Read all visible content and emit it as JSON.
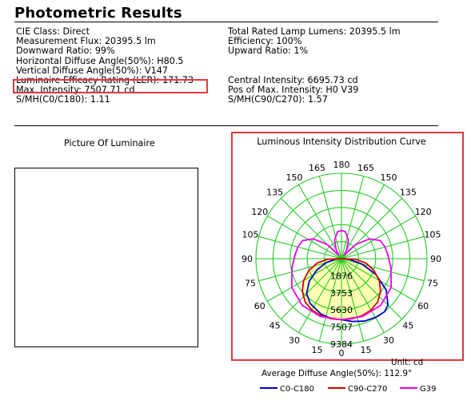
{
  "header": {
    "title": "Photometric Results"
  },
  "left_info": [
    "CIE Class: Direct",
    "Measurement Flux: 20395.5 lm",
    "Downward Ratio: 99%",
    "Horizontal Diffuse Angle(50%): H80.5",
    "Vertical Diffuse Angle(50%): V147",
    "Luminaire Efficacy Rating (LER): 171.73",
    "Max. Intensity: 7507.71 cd",
    "S/MH(C0/C180): 1.11"
  ],
  "right_info": [
    "Total Rated Lamp Lumens: 20395.5 lm",
    "Efficiency: 100%",
    "Upward Ratio: 1%",
    "",
    "",
    "Central Intensity: 6695.73 cd",
    "Pos of Max. Intensity: H0 V39",
    "S/MH(C90/C270): 1.57"
  ],
  "picture": {
    "label": "Picture Of Luminaire"
  },
  "chart_data": {
    "type": "polar",
    "title": "Luminous Intensity Distribution Curve",
    "angle_labels": [
      {
        "deg": 180,
        "text": "180"
      },
      {
        "deg": 165,
        "text": "165"
      },
      {
        "deg": -165,
        "text": "165"
      },
      {
        "deg": 150,
        "text": "150"
      },
      {
        "deg": -150,
        "text": "150"
      },
      {
        "deg": 135,
        "text": "135"
      },
      {
        "deg": -135,
        "text": "135"
      },
      {
        "deg": 120,
        "text": "120"
      },
      {
        "deg": -120,
        "text": "120"
      },
      {
        "deg": 105,
        "text": "105"
      },
      {
        "deg": -105,
        "text": "105"
      },
      {
        "deg": 90,
        "text": "90"
      },
      {
        "deg": -90,
        "text": "90"
      },
      {
        "deg": 75,
        "text": "75"
      },
      {
        "deg": -75,
        "text": "75"
      },
      {
        "deg": 60,
        "text": "60"
      },
      {
        "deg": -60,
        "text": "60"
      },
      {
        "deg": 45,
        "text": "45"
      },
      {
        "deg": -45,
        "text": "45"
      },
      {
        "deg": 30,
        "text": "30"
      },
      {
        "deg": -30,
        "text": "30"
      },
      {
        "deg": 15,
        "text": "15"
      },
      {
        "deg": -15,
        "text": "15"
      },
      {
        "deg": 0,
        "text": "0"
      }
    ],
    "radial_max": 9384,
    "radial_ticks": [
      1876,
      3753,
      5630,
      7507,
      9384
    ],
    "radial_tick_labels": [
      "1876",
      "3753",
      "5630",
      "7507",
      "9384"
    ],
    "unit": "Unit: cd",
    "average_diffuse": "Average Diffuse Angle(50%): 112.9°",
    "grid": true,
    "series": [
      {
        "name": "C0-C180",
        "color": "#0000cc",
        "points": [
          [
            0,
            6696
          ],
          [
            10,
            7000
          ],
          [
            20,
            7300
          ],
          [
            30,
            7450
          ],
          [
            39,
            7508
          ],
          [
            45,
            7200
          ],
          [
            55,
            6000
          ],
          [
            65,
            4200
          ],
          [
            75,
            2400
          ],
          [
            85,
            900
          ],
          [
            90,
            300
          ],
          [
            92,
            0
          ],
          [
            -92,
            0
          ],
          [
            -90,
            250
          ],
          [
            -85,
            700
          ],
          [
            -75,
            1800
          ],
          [
            -65,
            3000
          ],
          [
            -55,
            4300
          ],
          [
            -45,
            5400
          ],
          [
            -35,
            6000
          ],
          [
            -20,
            6500
          ],
          [
            -10,
            6650
          ]
        ]
      },
      {
        "name": "C90-C270",
        "color": "#e00000",
        "points": [
          [
            0,
            6696
          ],
          [
            10,
            6700
          ],
          [
            20,
            6650
          ],
          [
            30,
            6500
          ],
          [
            40,
            6200
          ],
          [
            50,
            5600
          ],
          [
            60,
            4800
          ],
          [
            70,
            3800
          ],
          [
            80,
            2700
          ],
          [
            88,
            1500
          ],
          [
            93,
            0
          ],
          [
            -93,
            0
          ],
          [
            -88,
            1500
          ],
          [
            -80,
            2700
          ],
          [
            -70,
            3800
          ],
          [
            -60,
            4800
          ],
          [
            -50,
            5600
          ],
          [
            -40,
            6200
          ],
          [
            -30,
            6500
          ],
          [
            -20,
            6650
          ],
          [
            -10,
            6700
          ]
        ]
      },
      {
        "name": "G39",
        "color": "#ee00ee",
        "points": [
          [
            0,
            6696
          ],
          [
            20,
            6750
          ],
          [
            40,
            6700
          ],
          [
            60,
            6300
          ],
          [
            80,
            5500
          ],
          [
            95,
            5100
          ],
          [
            105,
            4950
          ],
          [
            115,
            4700
          ],
          [
            125,
            3800
          ],
          [
            135,
            2200
          ],
          [
            142,
            500
          ],
          [
            150,
            1200
          ],
          [
            160,
            2200
          ],
          [
            172,
            3000
          ],
          [
            180,
            3100
          ],
          [
            -172,
            3000
          ],
          [
            -160,
            2200
          ],
          [
            -150,
            1200
          ],
          [
            -142,
            500
          ],
          [
            -135,
            2200
          ],
          [
            -125,
            3800
          ],
          [
            -115,
            4700
          ],
          [
            -105,
            4950
          ],
          [
            -95,
            5100
          ],
          [
            -80,
            5500
          ],
          [
            -60,
            6300
          ],
          [
            -40,
            6700
          ],
          [
            -20,
            6750
          ]
        ]
      }
    ]
  },
  "legend": [
    {
      "label": "C0-C180",
      "color": "#0000cc"
    },
    {
      "label": "C90-C270",
      "color": "#e00000"
    },
    {
      "label": "G39",
      "color": "#ee00ee"
    }
  ]
}
